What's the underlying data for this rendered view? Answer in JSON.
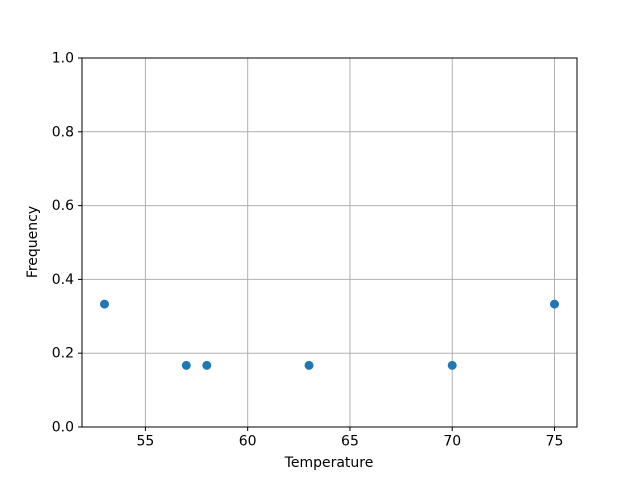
{
  "chart_data": {
    "type": "scatter",
    "title": "",
    "xlabel": "Temperature",
    "ylabel": "Frequency",
    "points": [
      {
        "x": 53,
        "y": 0.333
      },
      {
        "x": 57,
        "y": 0.167
      },
      {
        "x": 58,
        "y": 0.167
      },
      {
        "x": 63,
        "y": 0.167
      },
      {
        "x": 70,
        "y": 0.167
      },
      {
        "x": 75,
        "y": 0.333
      }
    ],
    "xticks": [
      55,
      60,
      65,
      70,
      75
    ],
    "xtick_labels": [
      "55",
      "60",
      "65",
      "70",
      "75"
    ],
    "yticks": [
      0.0,
      0.2,
      0.4,
      0.6,
      0.8,
      1.0
    ],
    "ytick_labels": [
      "0.0",
      "0.2",
      "0.4",
      "0.6",
      "0.8",
      "1.0"
    ],
    "xlim": [
      51.9,
      76.1
    ],
    "ylim": [
      0.0,
      1.0
    ],
    "grid": true,
    "legend": false,
    "marker_color": "#1f77b4",
    "grid_color": "#b0b0b0",
    "spine_color": "#000000"
  }
}
